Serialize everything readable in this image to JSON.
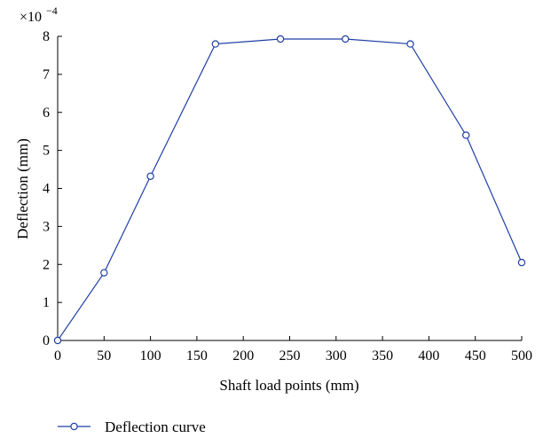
{
  "chart_data": {
    "type": "line",
    "title": "",
    "xlabel": "Shaft load points (mm)",
    "ylabel": "Deflection (mm)",
    "y_multiplier_label": {
      "base": "×10",
      "exponent": "−4"
    },
    "xlim": [
      0,
      500
    ],
    "ylim": [
      0,
      8
    ],
    "xticks": [
      0,
      50,
      100,
      150,
      200,
      250,
      300,
      350,
      400,
      450,
      500
    ],
    "yticks": [
      0,
      1,
      2,
      3,
      4,
      5,
      6,
      7,
      8
    ],
    "grid": false,
    "legend_position": "bottom-left, below axes",
    "series": [
      {
        "name": "Deflection curve",
        "color": "#1f3fa6",
        "marker": "open-circle",
        "x": [
          0,
          50,
          100,
          170,
          240,
          310,
          380,
          440,
          500
        ],
        "y": [
          0,
          1.78,
          4.32,
          7.8,
          7.93,
          7.93,
          7.8,
          5.4,
          2.05
        ]
      }
    ]
  }
}
